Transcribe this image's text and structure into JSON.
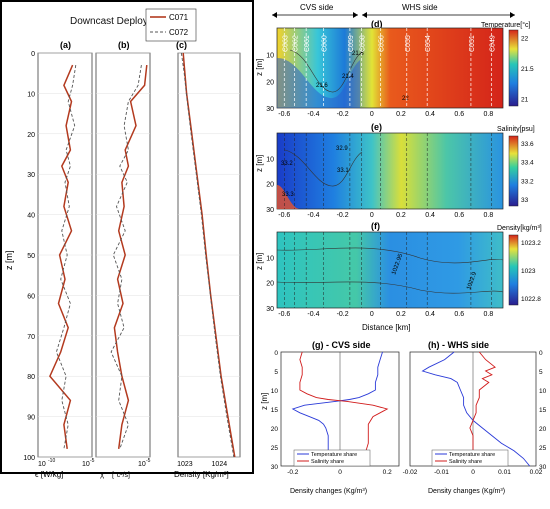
{
  "figure": {
    "left_panel_title": "Downcast Deployments",
    "legend": [
      "C071",
      "C072"
    ],
    "colors": {
      "c071": "#b33a1f",
      "c072": "#555555",
      "cold": "#1e2ab8",
      "warm": "#cc1f1a",
      "share_temp": "#2a3ad8",
      "share_sal": "#d11b1b"
    }
  },
  "chart_data": [
    {
      "type": "line",
      "panel": "(a)",
      "xlabel": "ϵ [W/kg]",
      "ylabel": "z [m]",
      "x_scale": "log",
      "xlim": [
        1e-10,
        1e-05
      ],
      "xticks": [
        "10^-10",
        "10^-5"
      ],
      "ylim": [
        100,
        0
      ],
      "yticks": [
        0,
        10,
        20,
        30,
        40,
        50,
        60,
        70,
        80,
        90,
        100
      ],
      "grid": true,
      "series": [
        {
          "name": "C071",
          "y": [
            3,
            8,
            12,
            18,
            24,
            28,
            32,
            38,
            44,
            50,
            56,
            62,
            68,
            74,
            80,
            86,
            92,
            98
          ],
          "x_log10": [
            -6.8,
            -7.6,
            -6.9,
            -7.4,
            -7.0,
            -7.8,
            -7.2,
            -7.6,
            -6.9,
            -8.0,
            -7.5,
            -8.1,
            -7.2,
            -7.9,
            -8.9,
            -7.0,
            -7.6,
            -7.3
          ]
        },
        {
          "name": "C072",
          "y": [
            3,
            8,
            12,
            18,
            24,
            28,
            32,
            38,
            44,
            50,
            56,
            62,
            68,
            74,
            80,
            86,
            92,
            98
          ],
          "x_log10": [
            -6.5,
            -6.8,
            -7.2,
            -6.6,
            -7.4,
            -7.0,
            -7.5,
            -7.1,
            -7.8,
            -7.3,
            -7.9,
            -7.0,
            -7.6,
            -8.3,
            -7.4,
            -7.8,
            -7.2,
            -7.6
          ]
        }
      ]
    },
    {
      "type": "line",
      "panel": "(b)",
      "xlabel": "χ",
      "xunit": "[°c²/s]",
      "x_scale": "log",
      "xlim": [
        1e-10,
        1e-05
      ],
      "xticks": [
        "10^-5"
      ],
      "ylim": [
        100,
        0
      ],
      "grid": true,
      "series": [
        {
          "name": "C071",
          "y": [
            3,
            8,
            12,
            18,
            24,
            28,
            32,
            38,
            44,
            50,
            56,
            62,
            68,
            74,
            80,
            86,
            92,
            98
          ],
          "x_log10": [
            -5.3,
            -5.5,
            -6.8,
            -6.3,
            -7.3,
            -7.0,
            -7.6,
            -7.4,
            -7.9,
            -7.3,
            -8.0,
            -7.5,
            -8.3,
            -8.0,
            -7.6,
            -7.0,
            -7.6,
            -7.9
          ]
        },
        {
          "name": "C072",
          "y": [
            3,
            8,
            12,
            18,
            24,
            28,
            32,
            38,
            44,
            50,
            56,
            62,
            68,
            74,
            80,
            86,
            92,
            98
          ],
          "x_log10": [
            -5.8,
            -6.1,
            -7.0,
            -7.4,
            -7.0,
            -7.8,
            -7.1,
            -8.1,
            -7.3,
            -8.4,
            -7.6,
            -8.0,
            -7.4,
            -8.6,
            -7.6,
            -7.9,
            -7.0,
            -7.8
          ]
        }
      ]
    },
    {
      "type": "line",
      "panel": "(c)",
      "xlabel": "Density [Kg/m³]",
      "xlim": [
        1022.8,
        1024.6
      ],
      "xticks": [
        1023,
        1024
      ],
      "ylim": [
        100,
        0
      ],
      "grid": true,
      "series": [
        {
          "name": "C071",
          "y": [
            0,
            5,
            10,
            20,
            30,
            40,
            50,
            60,
            70,
            80,
            90,
            100
          ],
          "x": [
            1022.95,
            1023.0,
            1023.05,
            1023.2,
            1023.35,
            1023.5,
            1023.62,
            1023.75,
            1023.9,
            1024.05,
            1024.25,
            1024.45
          ]
        },
        {
          "name": "C072",
          "y": [
            0,
            5,
            10,
            20,
            30,
            40,
            50,
            60,
            70,
            80,
            90,
            100
          ],
          "x": [
            1022.9,
            1022.98,
            1023.04,
            1023.18,
            1023.33,
            1023.48,
            1023.6,
            1023.74,
            1023.88,
            1024.03,
            1024.22,
            1024.42
          ]
        }
      ]
    },
    {
      "type": "heatmap",
      "panel": "(d)",
      "ylabel": "z [m]",
      "colorbar_label": "Temperature[°c]",
      "colorbar_ticks": [
        21,
        21.5,
        22
      ],
      "xlim": [
        -0.65,
        0.9
      ],
      "ylim": [
        30,
        0
      ],
      "xticks": [
        -0.6,
        -0.4,
        -0.2,
        0,
        0.2,
        0.4,
        0.6,
        0.8
      ],
      "yticks": [
        10,
        20,
        30
      ],
      "cast_labels": [
        "C063",
        "C062",
        "C061",
        "C060",
        "C059",
        "C058",
        "C056",
        "C055",
        "C054",
        "C051",
        "C049"
      ],
      "cast_x": [
        -0.6,
        -0.53,
        -0.45,
        -0.33,
        -0.15,
        -0.07,
        0.06,
        0.24,
        0.38,
        0.68,
        0.82
      ],
      "contour_labels": [
        "21.6",
        "21.4",
        "22",
        "21.8"
      ],
      "annotations": [
        "CVS side",
        "WHS side"
      ]
    },
    {
      "type": "heatmap",
      "panel": "(e)",
      "ylabel": "z [m]",
      "colorbar_label": "Salinity[psu]",
      "colorbar_ticks": [
        33,
        33.2,
        33.4,
        33.6
      ],
      "xlim": [
        -0.65,
        0.9
      ],
      "ylim": [
        30,
        0
      ],
      "xticks": [
        -0.6,
        -0.4,
        -0.2,
        0,
        0.2,
        0.4,
        0.6,
        0.8
      ],
      "yticks": [
        10,
        20,
        30
      ],
      "contour_labels": [
        "32.9",
        "33.1",
        "33.2",
        "33.3"
      ]
    },
    {
      "type": "heatmap",
      "panel": "(f)",
      "ylabel": "z [m]",
      "xlabel": "Distance [km]",
      "colorbar_label": "Density[kg/m³]",
      "colorbar_ticks": [
        1022.8,
        1023,
        1023.2
      ],
      "xlim": [
        -0.65,
        0.9
      ],
      "ylim": [
        30,
        0
      ],
      "xticks": [
        -0.6,
        -0.4,
        -0.2,
        0,
        0.2,
        0.4,
        0.6,
        0.8
      ],
      "yticks": [
        10,
        20,
        30
      ],
      "contour_labels": [
        "1022.95",
        "1022.9"
      ]
    },
    {
      "type": "line",
      "panel": "(g) - CVS side",
      "ylabel": "z [m]",
      "xlabel": "Density changes (Kg/m³)",
      "xlim": [
        -0.25,
        0.25
      ],
      "xticks": [
        -0.2,
        0,
        0.2
      ],
      "ylim": [
        30,
        0
      ],
      "yticks": [
        0,
        5,
        10,
        15,
        20,
        25,
        30
      ],
      "legend": [
        "Temperature share",
        "Salinity share"
      ],
      "series": [
        {
          "name": "Temperature share",
          "y": [
            0,
            2,
            4,
            6,
            8,
            10,
            11,
            12,
            12.5,
            13,
            14,
            15,
            16,
            17,
            18,
            19,
            20,
            22,
            24,
            26,
            28,
            30
          ],
          "x": [
            0.18,
            0.17,
            0.16,
            0.16,
            0.15,
            0.15,
            0.12,
            0.08,
            0.04,
            -0.02,
            -0.15,
            -0.2,
            -0.17,
            -0.13,
            -0.09,
            -0.07,
            -0.06,
            -0.05,
            -0.05,
            -0.05,
            -0.05,
            -0.05
          ]
        },
        {
          "name": "Salinity share",
          "y": [
            0,
            2,
            4,
            6,
            8,
            10,
            11,
            12,
            12.5,
            13,
            14,
            15,
            16,
            17,
            18,
            19,
            20,
            22,
            24,
            26,
            28,
            30
          ],
          "x": [
            -0.16,
            -0.17,
            -0.16,
            -0.16,
            -0.17,
            -0.17,
            -0.14,
            -0.1,
            -0.05,
            0.03,
            0.14,
            0.2,
            0.17,
            0.14,
            0.13,
            0.12,
            0.12,
            0.12,
            0.12,
            0.11,
            0.11,
            0.11
          ]
        }
      ]
    },
    {
      "type": "line",
      "panel": "(h) - WHS side",
      "xlabel": "Density changes (Kg/m³)",
      "xlim": [
        -0.02,
        0.02
      ],
      "xticks": [
        -0.02,
        -0.01,
        0,
        0.01,
        0.02
      ],
      "ylim": [
        30,
        0
      ],
      "yticks": [
        0,
        5,
        10,
        15,
        20,
        25,
        30
      ],
      "legend": [
        "Temperature share",
        "Salinity share"
      ],
      "series": [
        {
          "name": "Temperature share",
          "y": [
            0,
            2,
            4,
            5,
            6,
            7,
            8,
            10,
            12,
            14,
            16,
            18,
            20,
            22,
            24,
            26,
            28,
            30
          ],
          "x": [
            -0.006,
            -0.009,
            -0.014,
            -0.016,
            -0.012,
            -0.007,
            -0.005,
            -0.004,
            -0.003,
            -0.003,
            -0.002,
            0.0,
            0.003,
            0.006,
            0.009,
            0.013,
            0.016,
            0.018
          ]
        },
        {
          "name": "Salinity share",
          "y": [
            0,
            2,
            4,
            5,
            6,
            7,
            8,
            10,
            12,
            14,
            16,
            18,
            20,
            22,
            24,
            26,
            28,
            30
          ],
          "x": [
            0.002,
            0.004,
            0.007,
            0.004,
            0.006,
            0.003,
            0.005,
            0.002,
            0.002,
            0.001,
            0.001,
            0.0,
            -0.001,
            0.0,
            0.0,
            0.0,
            0.0,
            0.0
          ]
        }
      ]
    }
  ]
}
